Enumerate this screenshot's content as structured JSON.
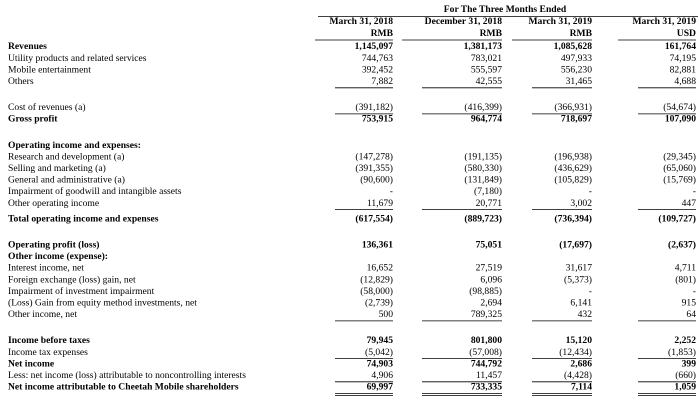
{
  "header": {
    "title": "For The Three Months Ended",
    "columns": [
      {
        "date": "March 31, 2018",
        "currency": "RMB"
      },
      {
        "date": "December 31, 2018",
        "currency": "RMB"
      },
      {
        "date": "March 31, 2019",
        "currency": "RMB"
      },
      {
        "date": "March 31, 2019",
        "currency": "USD"
      }
    ]
  },
  "sections": [
    {
      "rows": [
        {
          "label": "Revenues",
          "bold": true,
          "values": [
            "1,145,097",
            "1,381,173",
            "1,085,628",
            "161,764"
          ]
        },
        {
          "label": "Utility products and related services",
          "values": [
            "744,763",
            "783,021",
            "497,933",
            "74,195"
          ]
        },
        {
          "label": "Mobile entertainment",
          "values": [
            "392,452",
            "555,597",
            "556,230",
            "82,881"
          ]
        },
        {
          "label": "Others",
          "rule": "single",
          "values": [
            "7,882",
            "42,555",
            "31,465",
            "4,688"
          ]
        }
      ]
    },
    {
      "rows": [
        {
          "label": "Cost of revenues (a)",
          "rule": "single",
          "values": [
            "(391,182)",
            "(416,399)",
            "(366,931)",
            "(54,674)"
          ]
        },
        {
          "label": "Gross profit",
          "bold": true,
          "values": [
            "753,915",
            "964,774",
            "718,697",
            "107,090"
          ]
        }
      ]
    },
    {
      "rows": [
        {
          "label": "Operating income and expenses:",
          "bold": true,
          "values": []
        },
        {
          "label": "Research and development (a)",
          "values": [
            "(147,278)",
            "(191,135)",
            "(196,938)",
            "(29,345)"
          ]
        },
        {
          "label": "Selling and marketing (a)",
          "values": [
            "(391,355)",
            "(580,330)",
            "(436,629)",
            "(65,060)"
          ]
        },
        {
          "label": "General and administrative (a)",
          "values": [
            "(90,600)",
            "(131,849)",
            "(105,829)",
            "(15,769)"
          ]
        },
        {
          "label": "Impairment of goodwill and intangible assets",
          "values": [
            "-",
            "(7,180)",
            "-",
            "-"
          ]
        },
        {
          "label": "Other operating income",
          "rule": "single",
          "values": [
            "11,679",
            "20,771",
            "3,002",
            "447"
          ]
        },
        {
          "label": "Total operating income and  expenses",
          "bold": true,
          "values": [
            "(617,554)",
            "(889,723)",
            "(736,394)",
            "(109,727)"
          ]
        }
      ]
    },
    {
      "rows": [
        {
          "label": "Operating profit (loss)",
          "bold": true,
          "values": [
            "136,361",
            "75,051",
            "(17,697)",
            "(2,637)"
          ]
        },
        {
          "label": "Other income (expense):",
          "bold": true,
          "values": []
        },
        {
          "label": "Interest income, net",
          "values": [
            "16,652",
            "27,519",
            "31,617",
            "4,711"
          ]
        },
        {
          "label": "Foreign exchange (loss) gain, net",
          "values": [
            "(12,829)",
            "6,096",
            "(5,373)",
            "(801)"
          ]
        },
        {
          "label": "Impairment of investment impairment",
          "values": [
            "(58,000)",
            "(98,885)",
            "-",
            "-"
          ]
        },
        {
          "label": "(Loss) Gain from equity method investments, net",
          "values": [
            "(2,739)",
            "2,694",
            "6,141",
            "915"
          ]
        },
        {
          "label": "Other income, net",
          "rule": "single",
          "values": [
            "500",
            "789,325",
            "432",
            "64"
          ]
        }
      ]
    },
    {
      "rows": [
        {
          "label": "Income before taxes",
          "bold": true,
          "values": [
            "79,945",
            "801,800",
            "15,120",
            "2,252"
          ]
        },
        {
          "label": "Income tax expenses",
          "rule": "single",
          "values": [
            "(5,042)",
            "(57,008)",
            "(12,434)",
            "(1,853)"
          ]
        },
        {
          "label": "Net income",
          "bold": true,
          "values": [
            "74,903",
            "744,792",
            "2,686",
            "399"
          ]
        },
        {
          "label": "Less: net income (loss) attributable to noncontrolling interests",
          "rule": "single",
          "values": [
            "4,906",
            "11,457",
            "(4,428)",
            "(660)"
          ]
        },
        {
          "label": "Net income attributable to Cheetah Mobile shareholders",
          "bold": true,
          "rule": "double",
          "values": [
            "69,997",
            "733,335",
            "7,114",
            "1,059"
          ]
        }
      ]
    }
  ]
}
